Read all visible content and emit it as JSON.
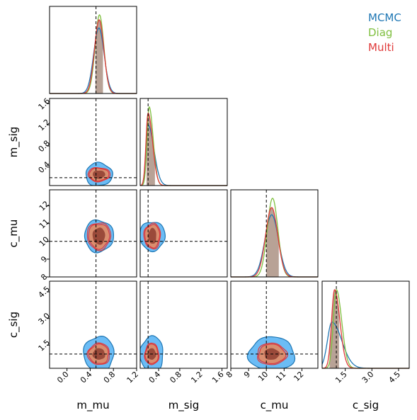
{
  "legend": {
    "placement": "top-right",
    "entries": [
      {
        "name": "MCMC",
        "color": "#1f77b4"
      },
      {
        "name": "Diag",
        "color": "#7fbf3f"
      },
      {
        "name": "Multi",
        "color": "#e03a3a"
      }
    ]
  },
  "chart_data": {
    "type": "corner",
    "parameters": [
      "m_mu",
      "m_sig",
      "c_mu",
      "c_sig"
    ],
    "truths": {
      "m_mu": 0.5,
      "m_sig": 0.2,
      "c_mu": 10.0,
      "c_sig": 1.0
    },
    "axes": {
      "m_mu": {
        "range": [
          -0.3,
          1.2
        ],
        "ticks": [
          0.0,
          0.4,
          0.8,
          1.2
        ],
        "tick_labels": [
          "0.0",
          "0.4",
          "0.8",
          "1.2"
        ]
      },
      "m_sig": {
        "range": [
          0.05,
          1.7
        ],
        "ticks": [
          0.4,
          0.8,
          1.2,
          1.6
        ],
        "tick_labels": [
          "0.4",
          "0.8",
          "1.2",
          "1.6"
        ]
      },
      "c_mu": {
        "range": [
          8.0,
          12.9
        ],
        "ticks": [
          8,
          9,
          10,
          11,
          12
        ],
        "tick_labels": [
          "8",
          "9",
          "10",
          "11",
          "12"
        ]
      },
      "c_sig": {
        "range": [
          0.2,
          5.1
        ],
        "ticks": [
          1.5,
          3.0,
          4.5
        ],
        "tick_labels": [
          "1.5",
          "3.0",
          "4.5"
        ]
      }
    },
    "marginals": {
      "m_mu": {
        "series": [
          {
            "name": "MCMC",
            "mean": 0.55,
            "sd": 0.09
          },
          {
            "name": "Diag",
            "mean": 0.56,
            "sd": 0.075
          },
          {
            "name": "Multi",
            "mean": 0.555,
            "sd": 0.08
          }
        ],
        "shade": [
          0.49,
          0.62
        ]
      },
      "m_sig": {
        "series": [
          {
            "name": "MCMC",
            "mode": 0.2,
            "sd_left": 0.04,
            "sd_right": 0.11
          },
          {
            "name": "Diag",
            "mode": 0.22,
            "sd_left": 0.04,
            "sd_right": 0.075
          },
          {
            "name": "Multi",
            "mode": 0.2,
            "sd_left": 0.04,
            "sd_right": 0.085
          }
        ],
        "shade": [
          0.17,
          0.33
        ]
      },
      "c_mu": {
        "series": [
          {
            "name": "MCMC",
            "mean": 10.3,
            "sd": 0.38
          },
          {
            "name": "Diag",
            "mean": 10.35,
            "sd": 0.3
          },
          {
            "name": "Multi",
            "mean": 10.3,
            "sd": 0.34
          }
        ],
        "shade": [
          10.0,
          10.7
        ]
      },
      "c_sig": {
        "series": [
          {
            "name": "MCMC",
            "mode": 0.75,
            "sd_left": 0.25,
            "sd_right": 0.55
          },
          {
            "name": "Diag",
            "mode": 1.0,
            "sd_left": 0.17,
            "sd_right": 0.3
          },
          {
            "name": "Multi",
            "mode": 0.9,
            "sd_left": 0.17,
            "sd_right": 0.3
          }
        ],
        "shade": [
          0.62,
          1.15
        ]
      }
    },
    "joints": [
      {
        "x": "m_mu",
        "y": "m_sig",
        "center": [
          0.55,
          0.26
        ],
        "outer": [
          0.23,
          0.22
        ],
        "mid": [
          0.17,
          0.12
        ],
        "inner": [
          0.1,
          0.07
        ]
      },
      {
        "x": "m_mu",
        "y": "c_mu",
        "center": [
          0.55,
          10.3
        ],
        "outer": [
          0.25,
          0.9
        ],
        "mid": [
          0.18,
          0.7
        ],
        "inner": [
          0.1,
          0.45
        ]
      },
      {
        "x": "m_sig",
        "y": "c_mu",
        "center": [
          0.28,
          10.3
        ],
        "outer": [
          0.24,
          0.82
        ],
        "mid": [
          0.14,
          0.65
        ],
        "inner": [
          0.07,
          0.42
        ]
      },
      {
        "x": "m_mu",
        "y": "c_sig",
        "center": [
          0.55,
          1.0
        ],
        "outer": [
          0.26,
          1.0
        ],
        "mid": [
          0.17,
          0.55
        ],
        "inner": [
          0.1,
          0.3
        ]
      },
      {
        "x": "m_sig",
        "y": "c_sig",
        "center": [
          0.27,
          1.0
        ],
        "outer": [
          0.22,
          1.0
        ],
        "mid": [
          0.12,
          0.55
        ],
        "inner": [
          0.07,
          0.3
        ]
      },
      {
        "x": "c_mu",
        "y": "c_sig",
        "center": [
          10.3,
          1.0
        ],
        "outer": [
          1.3,
          0.95
        ],
        "mid": [
          0.75,
          0.55
        ],
        "inner": [
          0.4,
          0.3
        ]
      }
    ],
    "colors": {
      "contour_outer_fill": "#6bbcf5",
      "contour_outer_edge": "#1f77b4",
      "contour_mid_fill": "#d98e6f",
      "contour_mid_edge": "#e03a3a",
      "contour_inner_fill": "#9a4a3a",
      "shade": "#b8a296",
      "truth_line": "#000000"
    }
  }
}
